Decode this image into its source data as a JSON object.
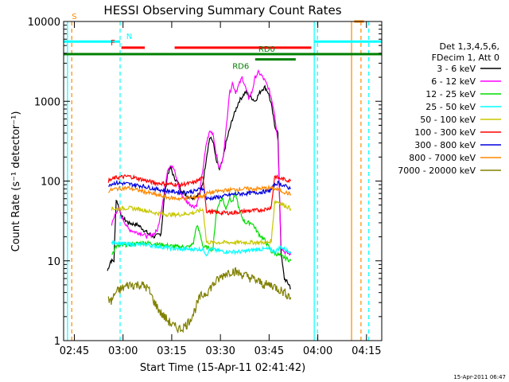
{
  "chart_data": {
    "type": "line",
    "title": "HESSI Observing Summary Count Rates",
    "xlabel": "Start Time (15-Apr-11 02:41:42)",
    "ylabel": "Count Rate (s⁻¹ detector⁻¹)",
    "yscale": "log",
    "ylim": [
      1,
      10000
    ],
    "xlim_minutes": [
      0,
      98
    ],
    "x_ticks": [
      {
        "label": "02:45",
        "min": 3.3
      },
      {
        "label": "03:00",
        "min": 18.3
      },
      {
        "label": "03:15",
        "min": 33.3
      },
      {
        "label": "03:30",
        "min": 48.3
      },
      {
        "label": "03:45",
        "min": 63.3
      },
      {
        "label": "04:00",
        "min": 78.3
      },
      {
        "label": "04:15",
        "min": 93.3
      }
    ],
    "y_ticks": [
      {
        "label": "1",
        "v": 1
      },
      {
        "label": "10",
        "v": 10
      },
      {
        "label": "100",
        "v": 100
      },
      {
        "label": "1000",
        "v": 1000
      },
      {
        "label": "10000",
        "v": 10000
      }
    ],
    "legend": {
      "placement": "right",
      "header": [
        "Det 1,3,4,5,6,",
        "FDecim 1, Att 0"
      ],
      "entries": [
        {
          "name": "3 - 6 keV",
          "color": "#000000"
        },
        {
          "name": "6 - 12 keV",
          "color": "#ff00ff"
        },
        {
          "name": "12 - 25 keV",
          "color": "#00dd00"
        },
        {
          "name": "25 - 50 keV",
          "color": "#00ffff"
        },
        {
          "name": "50 - 100 keV",
          "color": "#c8c800"
        },
        {
          "name": "100 - 300 keV",
          "color": "#ff0000"
        },
        {
          "name": "300 - 800 keV",
          "color": "#0000dd"
        },
        {
          "name": "800 - 7000 keV",
          "color": "#ff8800"
        },
        {
          "name": "7000 - 20000 keV",
          "color": "#808000"
        }
      ]
    },
    "series": [
      {
        "name": "3 - 6 keV",
        "color": "#000000",
        "points": [
          [
            13.5,
            7.5
          ],
          [
            14.5,
            10
          ],
          [
            15.5,
            10
          ],
          [
            16.2,
            60
          ],
          [
            18,
            35
          ],
          [
            20,
            30
          ],
          [
            23,
            28
          ],
          [
            26,
            22
          ],
          [
            28,
            20
          ],
          [
            30,
            22
          ],
          [
            31,
            60
          ],
          [
            32,
            120
          ],
          [
            33,
            150
          ],
          [
            34,
            110
          ],
          [
            35,
            100
          ],
          [
            36,
            80
          ],
          [
            38,
            65
          ],
          [
            40,
            62
          ],
          [
            42,
            70
          ],
          [
            43,
            100
          ],
          [
            44,
            200
          ],
          [
            45,
            350
          ],
          [
            46,
            320
          ],
          [
            47,
            180
          ],
          [
            48,
            140
          ],
          [
            49,
            180
          ],
          [
            50,
            300
          ],
          [
            52,
            600
          ],
          [
            54,
            1000
          ],
          [
            56,
            1300
          ],
          [
            58,
            1100
          ],
          [
            59,
            1000
          ],
          [
            60,
            1200
          ],
          [
            61,
            1400
          ],
          [
            62,
            1500
          ],
          [
            63,
            1300
          ],
          [
            64,
            900
          ],
          [
            65,
            500
          ],
          [
            66,
            400
          ],
          [
            67,
            12
          ],
          [
            68,
            6
          ],
          [
            69.5,
            5
          ],
          [
            70,
            4.5
          ]
        ]
      },
      {
        "name": "6 - 12 keV",
        "color": "#ff00ff",
        "points": [
          [
            14.8,
            28
          ],
          [
            16,
            40
          ],
          [
            17,
            45
          ],
          [
            18,
            35
          ],
          [
            20,
            25
          ],
          [
            22,
            23
          ],
          [
            24,
            22
          ],
          [
            26,
            20
          ],
          [
            28,
            22
          ],
          [
            29,
            25
          ],
          [
            31,
            70
          ],
          [
            32,
            140
          ],
          [
            33,
            160
          ],
          [
            34,
            140
          ],
          [
            35,
            100
          ],
          [
            36,
            70
          ],
          [
            38,
            55
          ],
          [
            40,
            48
          ],
          [
            41,
            50
          ],
          [
            42,
            75
          ],
          [
            43,
            150
          ],
          [
            44,
            300
          ],
          [
            45,
            420
          ],
          [
            46,
            400
          ],
          [
            47,
            220
          ],
          [
            48,
            140
          ],
          [
            49,
            180
          ],
          [
            50,
            420
          ],
          [
            51,
            1200
          ],
          [
            52,
            1700
          ],
          [
            53,
            1300
          ],
          [
            54,
            1600
          ],
          [
            55,
            2000
          ],
          [
            56,
            1500
          ],
          [
            57,
            1100
          ],
          [
            58,
            1300
          ],
          [
            59,
            2000
          ],
          [
            60,
            2300
          ],
          [
            61,
            2100
          ],
          [
            62,
            1800
          ],
          [
            63,
            1500
          ],
          [
            64,
            1100
          ],
          [
            65,
            700
          ],
          [
            66,
            320
          ],
          [
            67,
            15
          ],
          [
            68,
            13
          ],
          [
            70,
            12
          ]
        ]
      },
      {
        "name": "12 - 25 keV",
        "color": "#00dd00",
        "points": [
          [
            14.8,
            12
          ],
          [
            16,
            15
          ],
          [
            20,
            16
          ],
          [
            25,
            17
          ],
          [
            30,
            16
          ],
          [
            35,
            15
          ],
          [
            38,
            15
          ],
          [
            39,
            15
          ],
          [
            40,
            17
          ],
          [
            41,
            28
          ],
          [
            42,
            22
          ],
          [
            43,
            15
          ],
          [
            46,
            14
          ],
          [
            47,
            40
          ],
          [
            48,
            55
          ],
          [
            49,
            60
          ],
          [
            50,
            45
          ],
          [
            51,
            60
          ],
          [
            52,
            55
          ],
          [
            53,
            70
          ],
          [
            54,
            45
          ],
          [
            55,
            35
          ],
          [
            56,
            30
          ],
          [
            58,
            30
          ],
          [
            60,
            22
          ],
          [
            62,
            18
          ],
          [
            64,
            13
          ],
          [
            66,
            12
          ],
          [
            68,
            11
          ],
          [
            70,
            10
          ]
        ]
      },
      {
        "name": "25 - 50 keV",
        "color": "#00ffff",
        "points": [
          [
            14.8,
            17
          ],
          [
            16,
            17
          ],
          [
            20,
            16
          ],
          [
            25,
            16
          ],
          [
            30,
            15
          ],
          [
            35,
            14
          ],
          [
            40,
            14
          ],
          [
            43,
            14
          ],
          [
            44,
            12
          ],
          [
            45,
            14
          ],
          [
            50,
            13
          ],
          [
            55,
            13
          ],
          [
            60,
            14
          ],
          [
            62,
            14
          ],
          [
            64,
            14
          ],
          [
            65,
            13
          ],
          [
            66,
            14
          ],
          [
            67,
            15
          ],
          [
            68,
            14
          ],
          [
            70,
            13
          ]
        ]
      },
      {
        "name": "50 - 100 keV",
        "color": "#c8c800",
        "points": [
          [
            14.8,
            45
          ],
          [
            16,
            45
          ],
          [
            20,
            46
          ],
          [
            24,
            44
          ],
          [
            28,
            40
          ],
          [
            32,
            38
          ],
          [
            36,
            38
          ],
          [
            40,
            40
          ],
          [
            43,
            44
          ],
          [
            44,
            17
          ],
          [
            48,
            17
          ],
          [
            52,
            17
          ],
          [
            56,
            17
          ],
          [
            60,
            17
          ],
          [
            63,
            17
          ],
          [
            64,
            18
          ],
          [
            65,
            55
          ],
          [
            66,
            55
          ],
          [
            70,
            45
          ]
        ]
      },
      {
        "name": "100 - 300 keV",
        "color": "#ff0000",
        "points": [
          [
            13.8,
            100
          ],
          [
            16,
            110
          ],
          [
            20,
            115
          ],
          [
            24,
            105
          ],
          [
            28,
            95
          ],
          [
            32,
            92
          ],
          [
            36,
            90
          ],
          [
            40,
            95
          ],
          [
            43,
            110
          ],
          [
            44,
            42
          ],
          [
            48,
            40
          ],
          [
            52,
            40
          ],
          [
            56,
            42
          ],
          [
            60,
            43
          ],
          [
            63,
            45
          ],
          [
            64,
            48
          ],
          [
            65,
            115
          ],
          [
            66,
            110
          ],
          [
            70,
            100
          ]
        ]
      },
      {
        "name": "300 - 800 keV",
        "color": "#0000dd",
        "points": [
          [
            13.8,
            90
          ],
          [
            16,
            95
          ],
          [
            20,
            92
          ],
          [
            24,
            87
          ],
          [
            28,
            80
          ],
          [
            32,
            75
          ],
          [
            36,
            72
          ],
          [
            40,
            74
          ],
          [
            43,
            82
          ],
          [
            44,
            60
          ],
          [
            48,
            63
          ],
          [
            52,
            68
          ],
          [
            56,
            70
          ],
          [
            60,
            72
          ],
          [
            63,
            75
          ],
          [
            64,
            78
          ],
          [
            65,
            90
          ],
          [
            66,
            95
          ],
          [
            70,
            80
          ]
        ]
      },
      {
        "name": "800 - 7000 keV",
        "color": "#ff8800",
        "points": [
          [
            13.8,
            75
          ],
          [
            16,
            80
          ],
          [
            20,
            82
          ],
          [
            24,
            75
          ],
          [
            28,
            68
          ],
          [
            32,
            62
          ],
          [
            36,
            60
          ],
          [
            40,
            62
          ],
          [
            43,
            65
          ],
          [
            44,
            70
          ],
          [
            48,
            75
          ],
          [
            52,
            78
          ],
          [
            56,
            80
          ],
          [
            60,
            80
          ],
          [
            63,
            82
          ],
          [
            64,
            82
          ],
          [
            65,
            80
          ],
          [
            66,
            78
          ],
          [
            70,
            68
          ]
        ]
      },
      {
        "name": "7000 - 20000 keV",
        "color": "#808000",
        "points": [
          [
            13.8,
            3.5
          ],
          [
            14.5,
            3
          ],
          [
            16,
            4
          ],
          [
            18,
            4.5
          ],
          [
            20,
            5
          ],
          [
            24,
            5
          ],
          [
            26,
            4.5
          ],
          [
            28,
            3
          ],
          [
            30,
            2.2
          ],
          [
            32,
            1.8
          ],
          [
            34,
            1.5
          ],
          [
            36,
            1.4
          ],
          [
            38,
            1.6
          ],
          [
            40,
            2.2
          ],
          [
            42,
            3.5
          ],
          [
            44,
            4
          ],
          [
            46,
            5
          ],
          [
            48,
            6
          ],
          [
            50,
            7
          ],
          [
            52,
            7.5
          ],
          [
            54,
            7
          ],
          [
            56,
            6.5
          ],
          [
            58,
            6
          ],
          [
            60,
            5.5
          ],
          [
            62,
            5
          ],
          [
            64,
            5
          ],
          [
            66,
            4.5
          ],
          [
            68,
            4
          ],
          [
            70,
            3.5
          ]
        ]
      }
    ],
    "segment_bars": [
      {
        "label": "S",
        "color": "#ff8800",
        "y": 10000,
        "label_min": 2.5,
        "segments": [
          [
            89.5,
            92.5
          ]
        ]
      },
      {
        "label": "N",
        "color": "#00ffff",
        "y": 5600,
        "label_min": 19.3,
        "segments": [
          [
            0,
            17.4
          ],
          [
            77.2,
            98
          ]
        ]
      },
      {
        "label": "F",
        "color": "#ff0000",
        "y": 4700,
        "label_min": 14.5,
        "segments": [
          [
            17.8,
            25
          ],
          [
            34.2,
            76.3
          ]
        ]
      },
      {
        "label": "RD0",
        "color": "#008000",
        "y": 3900,
        "label_min": 60,
        "segments": [
          [
            0,
            98
          ]
        ]
      },
      {
        "label": "RD6",
        "color": "#008000",
        "y": 3350,
        "label_min": 52,
        "segments": [
          [
            59,
            71.5
          ]
        ]
      }
    ],
    "vertical_markers": [
      {
        "min": 1.2,
        "color": "#00ffff",
        "style": "solid"
      },
      {
        "min": 2.5,
        "color": "#ff8800",
        "style": "dashed"
      },
      {
        "min": 17.4,
        "color": "#00ffff",
        "style": "dashed"
      },
      {
        "min": 77.2,
        "color": "#00ffff",
        "style": "solid"
      },
      {
        "min": 78.2,
        "color": "#00ffff",
        "style": "dashed"
      },
      {
        "min": 88.7,
        "color": "#ff8800",
        "style": "solid"
      },
      {
        "min": 91.6,
        "color": "#ff8800",
        "style": "dashed"
      },
      {
        "min": 94,
        "color": "#00ffff",
        "style": "dashed"
      }
    ],
    "timestamp": "15-Apr-2011 06:47"
  }
}
